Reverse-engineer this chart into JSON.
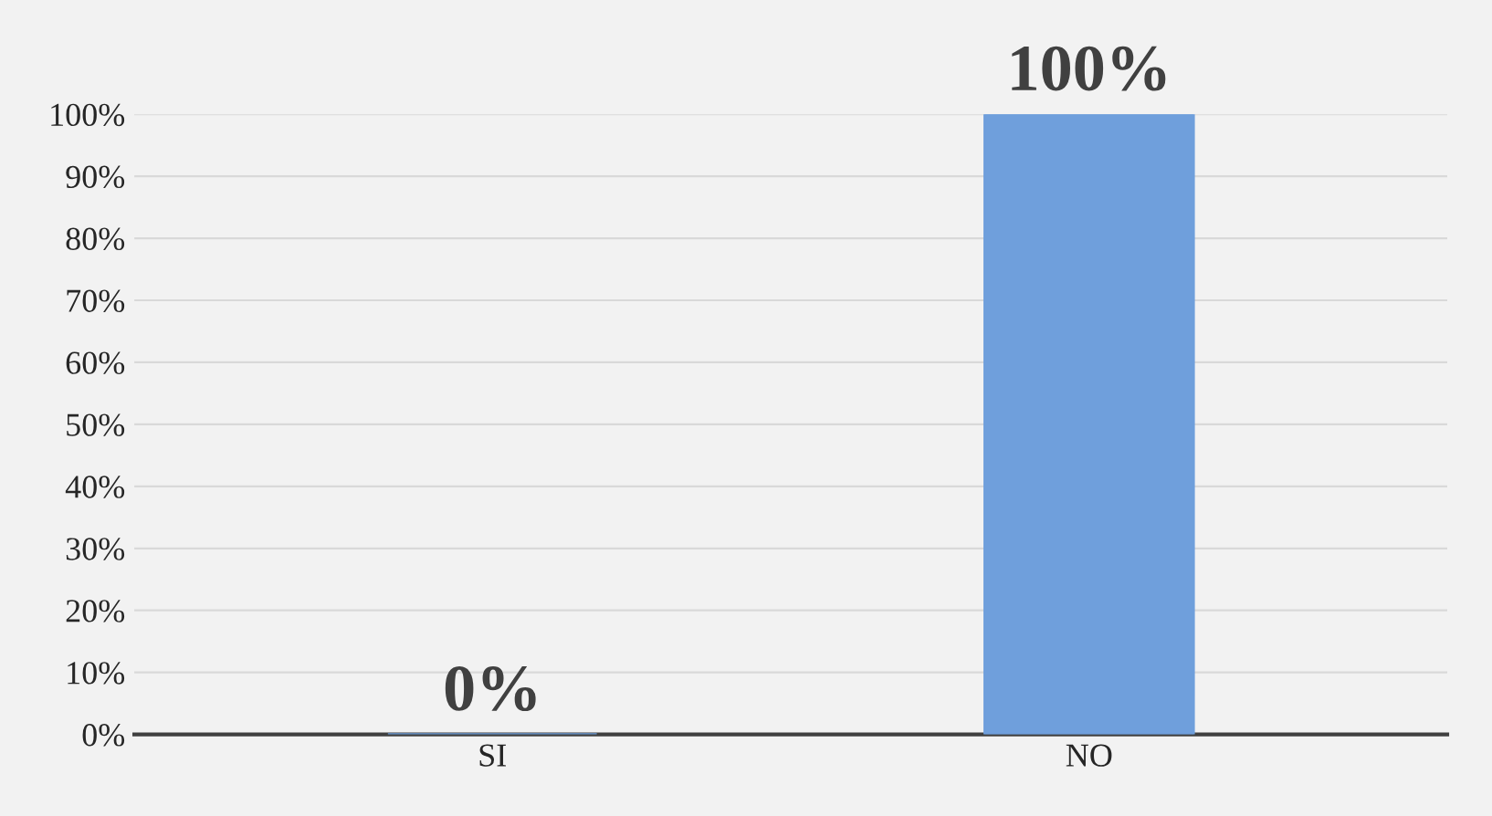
{
  "chart_data": {
    "type": "bar",
    "categories": [
      "SI",
      "NO"
    ],
    "series": [
      {
        "color": "#6f9fdc",
        "values": [
          0,
          100
        ],
        "value_labels": [
          "0%",
          "100%"
        ]
      }
    ],
    "ylim": [
      0,
      100
    ],
    "yticks": [
      {
        "value": 0,
        "label": "0%"
      },
      {
        "value": 10,
        "label": "10%"
      },
      {
        "value": 20,
        "label": "20%"
      },
      {
        "value": 30,
        "label": "30%"
      },
      {
        "value": 40,
        "label": "40%"
      },
      {
        "value": 50,
        "label": "50%"
      },
      {
        "value": 60,
        "label": "60%"
      },
      {
        "value": 70,
        "label": "70%"
      },
      {
        "value": 80,
        "label": "80%"
      },
      {
        "value": 90,
        "label": "90%"
      },
      {
        "value": 100,
        "label": "100%"
      }
    ],
    "grid": "y"
  }
}
